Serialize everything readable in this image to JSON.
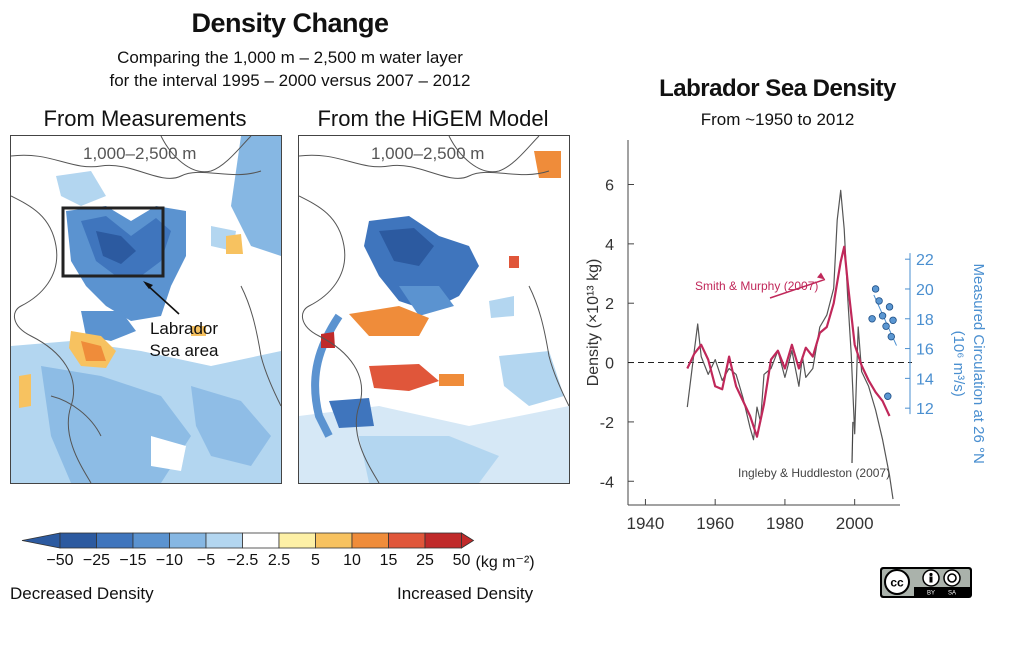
{
  "header": {
    "title": "Density Change",
    "subtitle_line1": "Comparing the 1,000 m – 2,500 m water layer",
    "subtitle_line2": "for the interval 1995 – 2000 versus 2007 – 2012"
  },
  "maps": [
    {
      "title": "From Measurements",
      "depth_label": "1,000–2,500 m"
    },
    {
      "title": "From the HiGEM Model",
      "depth_label": "1,000–2,500 m"
    }
  ],
  "annotation": {
    "line1": "Labrador",
    "line2": "Sea area"
  },
  "colorbar": {
    "labels": [
      "−50",
      "−25",
      "−15",
      "−10",
      "−5",
      "−2.5",
      "2.5",
      "5",
      "10",
      "15",
      "25",
      "50"
    ],
    "unit": "(kg m⁻²)",
    "colors": [
      "#2c5aa0",
      "#3f75bd",
      "#5b93d0",
      "#86b7e3",
      "#b3d6f0",
      "#ffffff",
      "#fdf0a6",
      "#f7c260",
      "#ef8c3a",
      "#e0563a",
      "#c02a2a"
    ],
    "left_caption": "Decreased Density",
    "right_caption": "Increased Density"
  },
  "chart_data": {
    "type": "line",
    "title": "Labrador Sea Density",
    "subtitle": "From ~1950 to 2012",
    "ylabel_left": "Density (×10¹³ kg)",
    "ylabel_right_line1": "Measured Circulation at 26 °N",
    "ylabel_right_line2": "(10⁶ m³/s)",
    "xlim": [
      1935,
      2013
    ],
    "ylim": [
      -4.8,
      7.5
    ],
    "x_ticks": [
      "1940",
      "1960",
      "1980",
      "2000"
    ],
    "y_ticks": [
      "-4",
      "-2",
      "0",
      "2",
      "4",
      "6"
    ],
    "y2lim": [
      5.5,
      30
    ],
    "y2_ticks": [
      "12",
      "14",
      "16",
      "18",
      "20",
      "22"
    ],
    "series": [
      {
        "name": "Smith & Murphy (2007)",
        "color": "#c0285a",
        "x": [
          1952,
          1954,
          1956,
          1958,
          1960,
          1962,
          1964,
          1966,
          1968,
          1970,
          1972,
          1974,
          1976,
          1978,
          1980,
          1982,
          1984,
          1986,
          1988,
          1990,
          1992,
          1994,
          1996,
          1997,
          1998,
          2000,
          2002,
          2004,
          2006,
          2008,
          2010
        ],
        "y": [
          -0.2,
          0.3,
          0.6,
          0.1,
          -0.8,
          -0.9,
          0.2,
          -0.8,
          -1.3,
          -1.8,
          -2.5,
          -1.4,
          0.1,
          0.4,
          -0.2,
          0.6,
          -0.2,
          0.5,
          0.2,
          1.0,
          1.2,
          2.0,
          3.4,
          3.9,
          2.7,
          0.6,
          -0.1,
          -0.6,
          -1.0,
          -1.3,
          -1.8
        ]
      },
      {
        "name": "Ingleby & Huddleston (2007)",
        "color": "#555555",
        "x": [
          1952,
          1954,
          1955,
          1956,
          1958,
          1960,
          1962,
          1964,
          1966,
          1968,
          1970,
          1971,
          1972,
          1973,
          1974,
          1976,
          1978,
          1980,
          1982,
          1984,
          1985,
          1986,
          1988,
          1990,
          1992,
          1994,
          1995,
          1996,
          1997,
          1998,
          1999,
          2000,
          2001,
          2002,
          2004,
          2006,
          2008,
          2010,
          2011
        ],
        "y": [
          -1.5,
          0.4,
          1.3,
          0.2,
          -0.4,
          0.1,
          -0.6,
          -0.2,
          -0.4,
          -1.2,
          -2.2,
          -2.6,
          -1.5,
          -2.0,
          -0.4,
          -0.2,
          0.4,
          -0.5,
          0.4,
          -0.8,
          0.2,
          -0.5,
          -0.2,
          1.2,
          1.6,
          2.5,
          4.8,
          5.8,
          4.5,
          2.2,
          0.3,
          -2.4,
          1.2,
          -0.3,
          -0.8,
          -1.6,
          -2.6,
          -3.8,
          -4.6
        ]
      }
    ],
    "circulation_points": [
      {
        "x": 2005,
        "y": 18.0
      },
      {
        "x": 2006,
        "y": 20.0
      },
      {
        "x": 2007,
        "y": 19.2
      },
      {
        "x": 2008,
        "y": 18.2
      },
      {
        "x": 2009,
        "y": 17.5
      },
      {
        "x": 2010,
        "y": 18.8
      },
      {
        "x": 2010.5,
        "y": 16.8
      },
      {
        "x": 2011,
        "y": 17.9
      },
      {
        "x": 2009.5,
        "y": 12.8
      }
    ],
    "circulation_color": "#4a8fd0",
    "annotations": {
      "smith": "Smith & Murphy (2007)",
      "ingleby": "Ingleby & Huddleston (2007)"
    }
  },
  "license": {
    "badge_text": "cc",
    "by": "BY",
    "sa": "SA"
  }
}
